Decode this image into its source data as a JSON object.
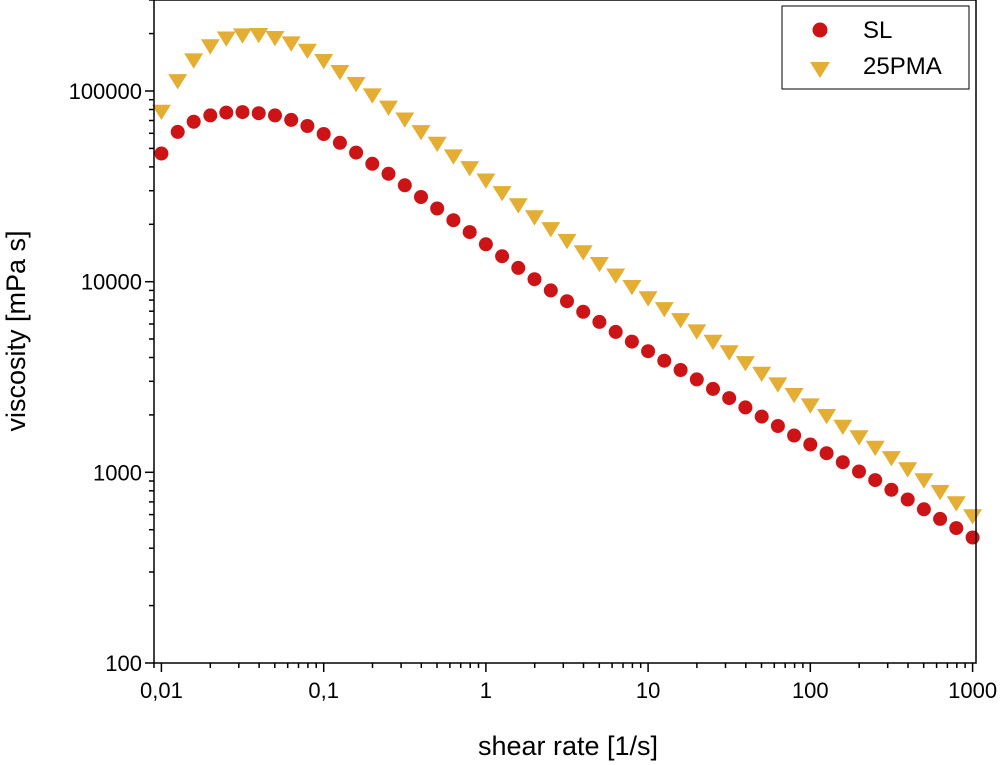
{
  "chart_data": {
    "type": "scatter",
    "title": "",
    "xlabel": "shear rate [1/s]",
    "ylabel": "viscosity [mPa s]",
    "xscale": "log",
    "yscale": "log",
    "xlim": [
      0.009,
      1050
    ],
    "ylim": [
      100,
      300000
    ],
    "x_ticks": [
      0.01,
      0.1,
      1,
      10,
      100,
      1000
    ],
    "x_tick_labels": [
      "0,01",
      "0,1",
      "1",
      "10",
      "100",
      "1000"
    ],
    "y_ticks": [
      100,
      1000,
      10000,
      100000
    ],
    "y_tick_labels": [
      "100",
      "1000",
      "10000",
      "100000"
    ],
    "legend_position": "top-right",
    "grid": false,
    "x": [
      0.01,
      0.0126,
      0.0158,
      0.02,
      0.0251,
      0.0316,
      0.0398,
      0.0501,
      0.0631,
      0.0794,
      0.1,
      0.1259,
      0.1585,
      0.1995,
      0.2512,
      0.3162,
      0.3981,
      0.5012,
      0.631,
      0.7943,
      1.0,
      1.259,
      1.585,
      1.995,
      2.512,
      3.162,
      3.981,
      5.012,
      6.31,
      7.943,
      10.0,
      12.59,
      15.85,
      19.95,
      25.12,
      31.62,
      39.81,
      50.12,
      63.1,
      79.43,
      100.0,
      125.9,
      158.5,
      199.5,
      251.2,
      316.2,
      398.1,
      501.2,
      631.0,
      794.3,
      1000.0
    ],
    "series": [
      {
        "name": "SL",
        "color": "#cc1417",
        "marker": "circle",
        "values": [
          47000,
          61000,
          69000,
          74500,
          77000,
          77500,
          76500,
          74500,
          70500,
          65500,
          59500,
          53500,
          47500,
          41500,
          36800,
          32000,
          27800,
          24200,
          21000,
          18200,
          15700,
          13600,
          11800,
          10300,
          9000,
          7900,
          6950,
          6150,
          5450,
          4850,
          4320,
          3850,
          3440,
          3070,
          2740,
          2450,
          2190,
          1960,
          1750,
          1560,
          1400,
          1260,
          1130,
          1010,
          910,
          810,
          720,
          640,
          570,
          510,
          455
        ]
      },
      {
        "name": "25PMA",
        "color": "#e3ae33",
        "marker": "triangle-down",
        "values": [
          78000,
          113000,
          145000,
          172000,
          189000,
          196000,
          197000,
          190000,
          178000,
          163000,
          144000,
          126000,
          109000,
          95000,
          82000,
          71000,
          61000,
          53000,
          45500,
          39500,
          34000,
          29200,
          25200,
          21800,
          18900,
          16400,
          14300,
          12400,
          10800,
          9400,
          8200,
          7200,
          6300,
          5500,
          4850,
          4270,
          3750,
          3300,
          2900,
          2550,
          2250,
          1980,
          1740,
          1530,
          1350,
          1190,
          1040,
          910,
          790,
          690,
          590
        ]
      }
    ]
  }
}
